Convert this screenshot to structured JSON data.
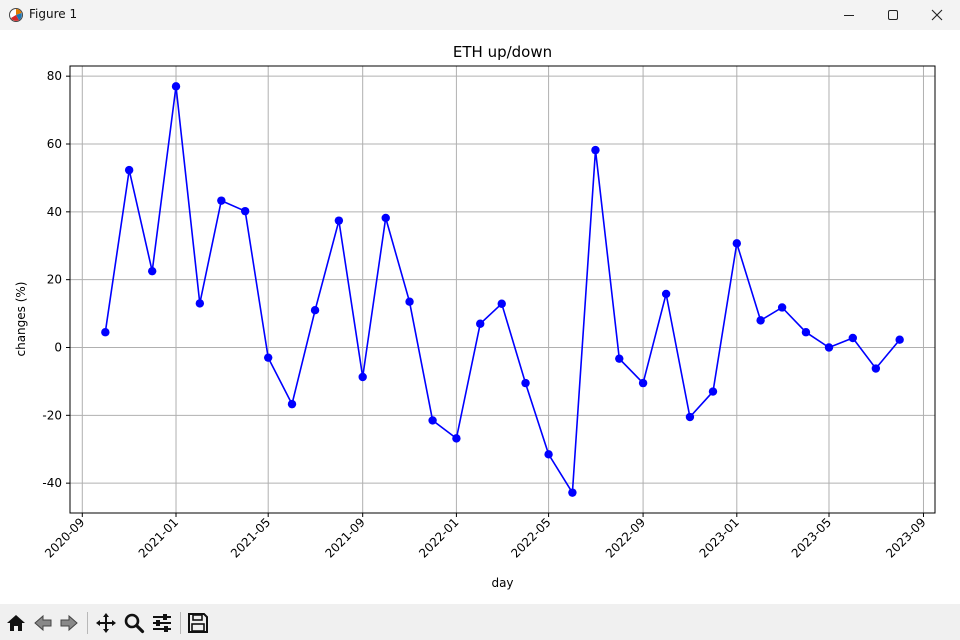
{
  "window": {
    "title": "Figure 1",
    "app_icon": "matplotlib-figure-icon",
    "controls": [
      "minimize-icon",
      "maximize-icon",
      "close-icon"
    ]
  },
  "toolbar": {
    "buttons": [
      "home-icon",
      "back-arrow-icon",
      "forward-arrow-icon",
      "pan-icon",
      "zoom-icon",
      "configure-subplots-icon",
      "save-icon"
    ]
  },
  "chart_data": {
    "type": "line",
    "title": "ETH up/down",
    "xlabel": "day",
    "ylabel": "changes (%)",
    "x": [
      "2020-10-01",
      "2020-11-01",
      "2020-12-01",
      "2021-01-01",
      "2021-02-01",
      "2021-03-01",
      "2021-04-01",
      "2021-05-01",
      "2021-06-01",
      "2021-07-01",
      "2021-08-01",
      "2021-09-01",
      "2021-10-01",
      "2021-11-01",
      "2021-12-01",
      "2022-01-01",
      "2022-02-01",
      "2022-03-01",
      "2022-04-01",
      "2022-05-01",
      "2022-06-01",
      "2022-07-01",
      "2022-08-01",
      "2022-09-01",
      "2022-10-01",
      "2022-11-01",
      "2022-12-01",
      "2023-01-01",
      "2023-02-01",
      "2023-03-01",
      "2023-04-01",
      "2023-05-01",
      "2023-06-01",
      "2023-07-01",
      "2023-08-01"
    ],
    "series": [
      {
        "values": [
          4.5,
          52.3,
          22.5,
          77.0,
          13.0,
          43.3,
          40.2,
          -3.0,
          -16.7,
          11.0,
          37.4,
          -8.7,
          38.2,
          13.5,
          -21.5,
          -26.8,
          7.0,
          12.9,
          -10.5,
          -31.5,
          -42.8,
          58.2,
          -3.3,
          -10.5,
          15.8,
          -20.5,
          -13.0,
          30.7,
          8.0,
          11.8,
          4.5,
          0.0,
          2.8,
          -6.2,
          2.3
        ],
        "color": "#0000ff"
      }
    ],
    "xticks": [
      "2020-09",
      "2021-01",
      "2021-05",
      "2021-09",
      "2022-01",
      "2022-05",
      "2022-09",
      "2023-01",
      "2023-05",
      "2023-09"
    ],
    "yticks": [
      -40,
      -20,
      0,
      20,
      40,
      60,
      80
    ],
    "xlim": [
      "2020-08-16",
      "2023-09-16"
    ],
    "ylim": [
      -48.8,
      83.0
    ],
    "grid": true,
    "legend": "none"
  }
}
